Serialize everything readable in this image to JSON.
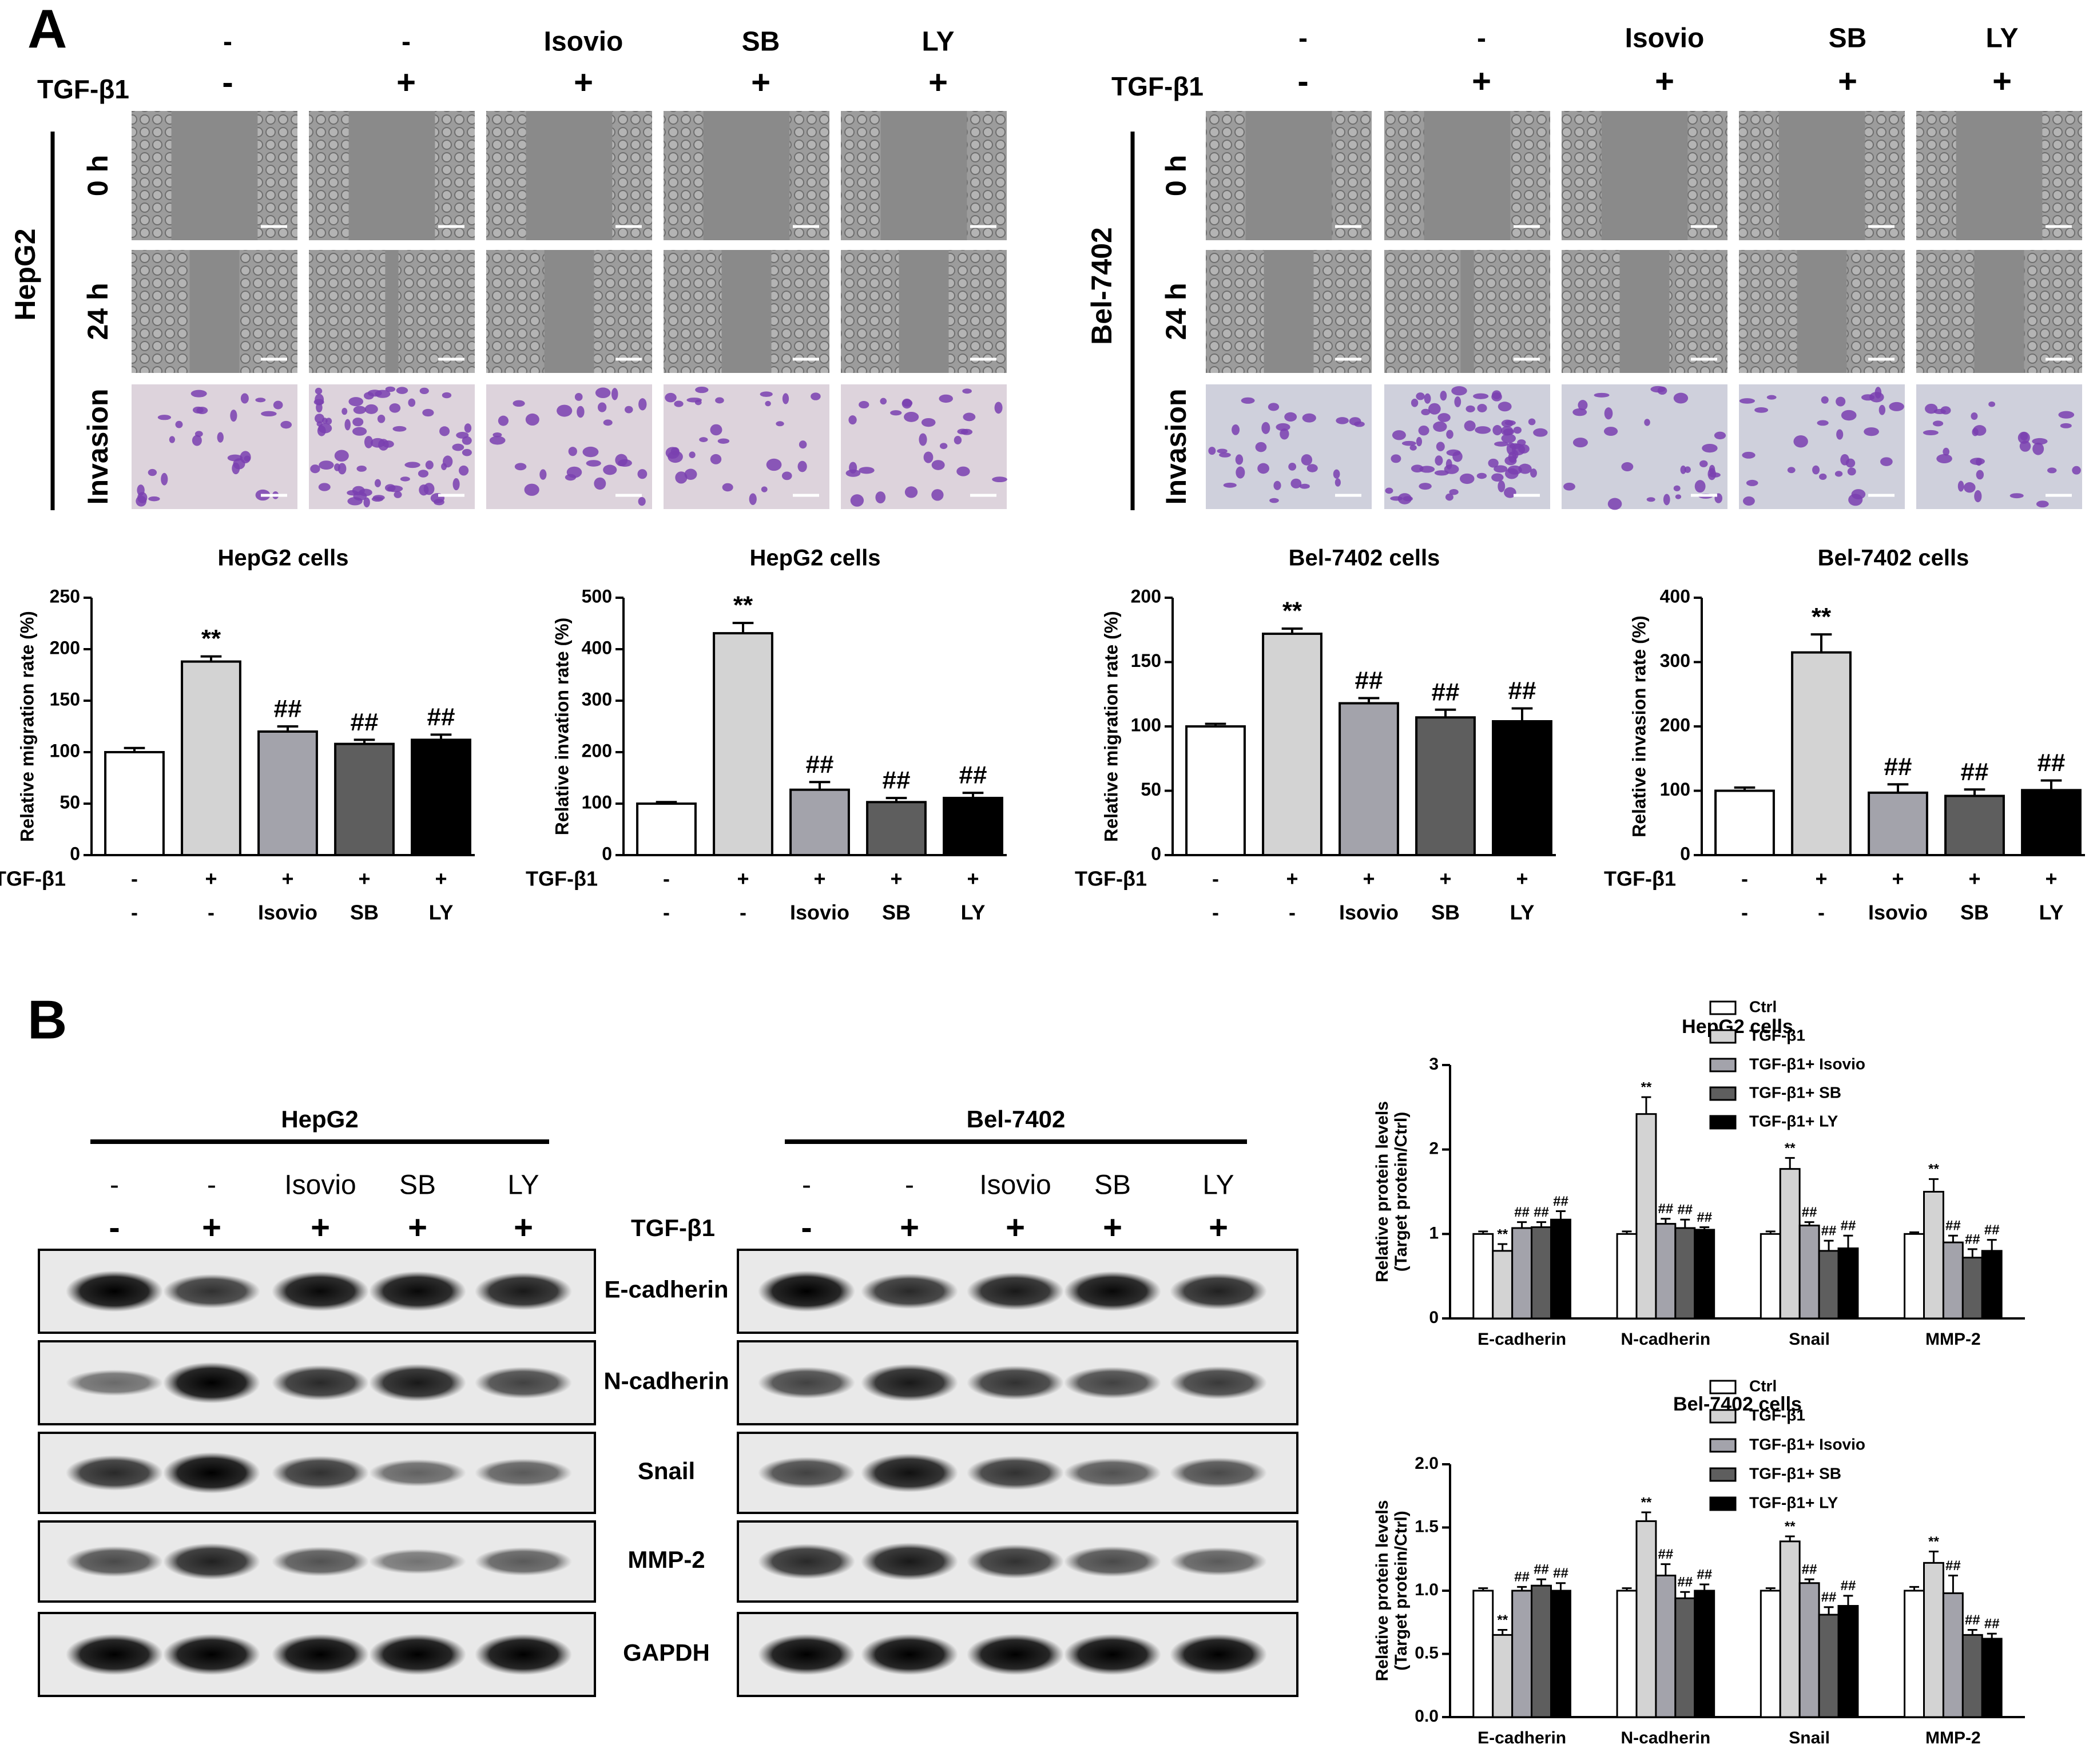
{
  "panelA": {
    "label": "A",
    "treatments": [
      "-",
      "-",
      "Isovio",
      "SB",
      "LY"
    ],
    "tgf_label": "TGF-β1",
    "tgf_signs": [
      "-",
      "+",
      "+",
      "+",
      "+"
    ],
    "lines": [
      {
        "name": "HepG2",
        "rows": [
          "0 h",
          "24 h",
          "Invasion"
        ]
      },
      {
        "name": "Bel-7402",
        "rows": [
          "0 h",
          "24 h",
          "Invasion"
        ]
      }
    ]
  },
  "panelB": {
    "label": "B",
    "blot_groups": [
      {
        "name": "HepG2",
        "treatments": [
          "-",
          "-",
          "Isovio",
          "SB",
          "LY"
        ],
        "tgf_signs": [
          "-",
          "+",
          "+",
          "+",
          "+"
        ]
      },
      {
        "name": "Bel-7402",
        "treatments": [
          "-",
          "-",
          "Isovio",
          "SB",
          "LY"
        ],
        "tgf_signs": [
          "-",
          "+",
          "+",
          "+",
          "+"
        ]
      }
    ],
    "tgf_label": "TGF-β1",
    "proteins": [
      "E-cadherin",
      "N-cadherin",
      "Snail",
      "MMP-2",
      "GAPDH"
    ]
  },
  "bar_axis": {
    "tgf_label": "TGF-β1",
    "tgf_signs": [
      "-",
      "+",
      "+",
      "+",
      "+"
    ],
    "treatments": [
      "-",
      "-",
      "Isovio",
      "SB",
      "LY"
    ]
  },
  "chart_data": [
    {
      "type": "bar",
      "title": "HepG2 cells",
      "ylabel": "Relative migration rate (%)",
      "ylim": [
        0,
        250
      ],
      "yticks": [
        0,
        50,
        100,
        150,
        200,
        250
      ],
      "categories": [
        "Ctrl",
        "TGF-β1",
        "TGF-β1+Isovio",
        "TGF-β1+SB",
        "TGF-β1+LY"
      ],
      "values": [
        100,
        188,
        120,
        108,
        112
      ],
      "errors": [
        4,
        5,
        5,
        4,
        5
      ],
      "annotations": [
        "",
        "**",
        "##",
        "##",
        "##"
      ]
    },
    {
      "type": "bar",
      "title": "HepG2 cells",
      "ylabel": "Relative invation rate (%)",
      "ylim": [
        0,
        500
      ],
      "yticks": [
        0,
        100,
        200,
        300,
        400,
        500
      ],
      "categories": [
        "Ctrl",
        "TGF-β1",
        "TGF-β1+Isovio",
        "TGF-β1+SB",
        "TGF-β1+LY"
      ],
      "values": [
        100,
        431,
        127,
        103,
        111
      ],
      "errors": [
        3,
        20,
        15,
        8,
        10
      ],
      "annotations": [
        "",
        "**",
        "##",
        "##",
        "##"
      ]
    },
    {
      "type": "bar",
      "title": "Bel-7402 cells",
      "ylabel": "Relative migration rate (%)",
      "ylim": [
        0,
        200
      ],
      "yticks": [
        0,
        50,
        100,
        150,
        200
      ],
      "categories": [
        "Ctrl",
        "TGF-β1",
        "TGF-β1+Isovio",
        "TGF-β1+SB",
        "TGF-β1+LY"
      ],
      "values": [
        100,
        172,
        118,
        107,
        104
      ],
      "errors": [
        2,
        4,
        4,
        6,
        10
      ],
      "annotations": [
        "",
        "**",
        "##",
        "##",
        "##"
      ]
    },
    {
      "type": "bar",
      "title": "Bel-7402 cells",
      "ylabel": "Relative invasion rate (%)",
      "ylim": [
        0,
        400
      ],
      "yticks": [
        0,
        100,
        200,
        300,
        400
      ],
      "categories": [
        "Ctrl",
        "TGF-β1",
        "TGF-β1+Isovio",
        "TGF-β1+SB",
        "TGF-β1+LY"
      ],
      "values": [
        100,
        315,
        97,
        92,
        101
      ],
      "errors": [
        5,
        28,
        13,
        10,
        15
      ],
      "annotations": [
        "",
        "**",
        "##",
        "##",
        "##"
      ]
    },
    {
      "type": "bar",
      "title": "HepG2 cells",
      "ylabel": "Relative protein levels\n(Target protein/Ctrl)",
      "ylim": [
        0,
        3
      ],
      "yticks": [
        0,
        1,
        2,
        3
      ],
      "categories": [
        "E-cadherin",
        "N-cadherin",
        "Snail",
        "MMP-2"
      ],
      "legend": "top-right",
      "series": [
        {
          "name": "Ctrl",
          "values": [
            1.0,
            1.0,
            1.0,
            1.0
          ],
          "errors": [
            0.03,
            0.03,
            0.03,
            0.02
          ],
          "annotations": [
            "",
            "",
            "",
            ""
          ]
        },
        {
          "name": "TGF-β1",
          "values": [
            0.8,
            2.42,
            1.77,
            1.5
          ],
          "errors": [
            0.08,
            0.2,
            0.13,
            0.15
          ],
          "annotations": [
            "**",
            "**",
            "**",
            "**"
          ]
        },
        {
          "name": "TGF-β1+ Isovio",
          "values": [
            1.07,
            1.12,
            1.1,
            0.9
          ],
          "errors": [
            0.07,
            0.06,
            0.04,
            0.08
          ],
          "annotations": [
            "##",
            "##",
            "##",
            "##"
          ]
        },
        {
          "name": "TGF-β1+ SB",
          "values": [
            1.08,
            1.07,
            0.8,
            0.72
          ],
          "errors": [
            0.06,
            0.1,
            0.12,
            0.1
          ],
          "annotations": [
            "##",
            "##",
            "##",
            "##"
          ]
        },
        {
          "name": "TGF-β1+ LY",
          "values": [
            1.17,
            1.05,
            0.83,
            0.8
          ],
          "errors": [
            0.1,
            0.03,
            0.15,
            0.13
          ],
          "annotations": [
            "##",
            "##",
            "##",
            "##"
          ]
        }
      ]
    },
    {
      "type": "bar",
      "title": "Bel-7402 cells",
      "ylabel": "Relative protein levels\n(Target protein/Ctrl)",
      "ylim": [
        0,
        2
      ],
      "yticks": [
        0.0,
        0.5,
        1.0,
        1.5,
        2.0
      ],
      "categories": [
        "E-cadherin",
        "N-cadherin",
        "Snail",
        "MMP-2"
      ],
      "legend": "top-right",
      "series": [
        {
          "name": "Ctrl",
          "values": [
            1.0,
            1.0,
            1.0,
            1.0
          ],
          "errors": [
            0.02,
            0.02,
            0.02,
            0.03
          ],
          "annotations": [
            "",
            "",
            "",
            ""
          ]
        },
        {
          "name": "TGF-β1",
          "values": [
            0.65,
            1.55,
            1.39,
            1.22
          ],
          "errors": [
            0.04,
            0.07,
            0.04,
            0.09
          ],
          "annotations": [
            "**",
            "**",
            "**",
            "**"
          ]
        },
        {
          "name": "TGF-β1+ Isovio",
          "values": [
            1.0,
            1.12,
            1.06,
            0.98
          ],
          "errors": [
            0.03,
            0.09,
            0.03,
            0.14
          ],
          "annotations": [
            "##",
            "##",
            "##",
            "##"
          ]
        },
        {
          "name": "TGF-β1+ SB",
          "values": [
            1.04,
            0.94,
            0.81,
            0.65
          ],
          "errors": [
            0.05,
            0.05,
            0.06,
            0.04
          ],
          "annotations": [
            "##",
            "##",
            "##",
            "##"
          ]
        },
        {
          "name": "TGF-β1+ LY",
          "values": [
            1.0,
            1.0,
            0.88,
            0.62
          ],
          "errors": [
            0.06,
            0.05,
            0.08,
            0.04
          ],
          "annotations": [
            "##",
            "##",
            "##",
            "##"
          ]
        }
      ]
    }
  ],
  "colors": {
    "ctrl": "#ffffff",
    "tgf": "#d3d3d3",
    "isovio": "#a3a3ab",
    "sb": "#5e5e5e",
    "ly": "#000000",
    "microscope": "#8a8a8a",
    "invasion_bg": "#ddd3dc",
    "cell_violet": "#7a3fb0"
  }
}
